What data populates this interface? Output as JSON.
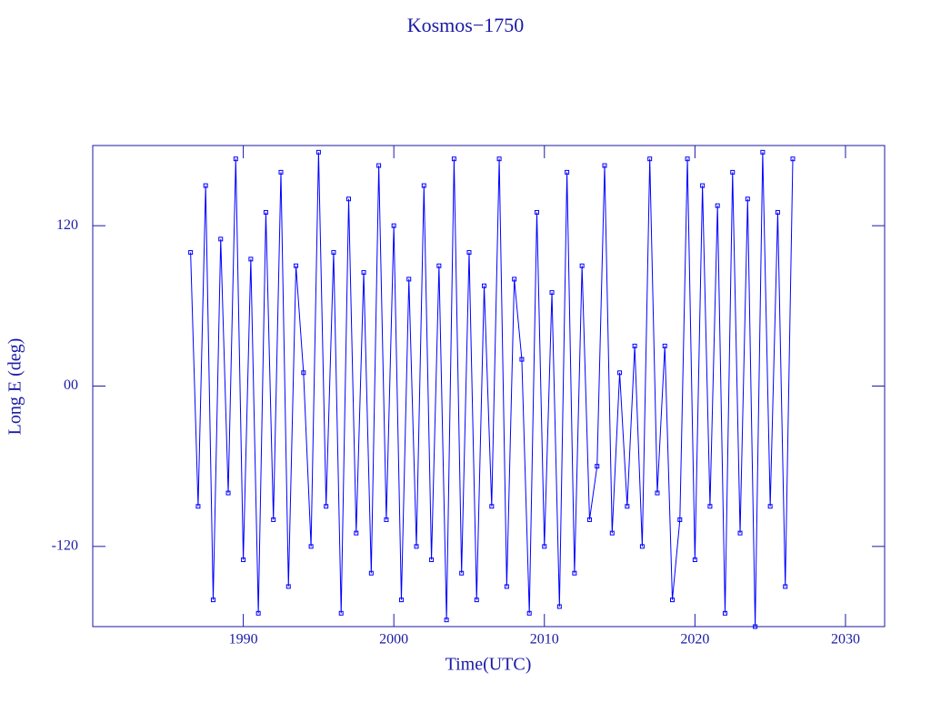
{
  "chart_data": {
    "type": "line",
    "title": "Kosmos−1750",
    "x_label": "Time(UTC)",
    "y_label": "Long E (deg)",
    "color": "#0000ff",
    "xlim": [
      1980,
      2032.6
    ],
    "ylim": [
      -180,
      180
    ],
    "xticks": [
      1990,
      2000,
      2010,
      2020,
      2030
    ],
    "yticks": [
      -120,
      {
        "value": 0,
        "label": "00"
      },
      120
    ],
    "x": [
      1986.5,
      1987,
      1987.5,
      1988,
      1988.5,
      1989,
      1989.5,
      1990,
      1990.5,
      1991,
      1991.5,
      1992,
      1992.5,
      1993,
      1993.5,
      1994,
      1994.5,
      1995,
      1995.5,
      1996,
      1996.5,
      1997,
      1997.5,
      1998,
      1998.5,
      1999,
      1999.5,
      2000,
      2000.5,
      2001,
      2001.5,
      2002,
      2002.5,
      2003,
      2003.5,
      2004,
      2004.5,
      2005,
      2005.5,
      2006,
      2006.5,
      2007,
      2007.5,
      2008,
      2008.5,
      2009,
      2009.5,
      2010,
      2010.5,
      2011,
      2011.5,
      2012,
      2012.5,
      2013,
      2013.5,
      2014,
      2014.5,
      2015,
      2015.5,
      2016,
      2016.5,
      2017,
      2017.5,
      2018,
      2018.5,
      2019,
      2019.5,
      2020,
      2020.5,
      2021,
      2021.5,
      2022,
      2022.5,
      2023,
      2023.5,
      2024,
      2024.5,
      2025,
      2025.5,
      2026,
      2026.5
    ],
    "values": [
      100,
      -90,
      150,
      -160,
      110,
      -80,
      170,
      -130,
      95,
      -170,
      130,
      -100,
      160,
      -150,
      90,
      10,
      -120,
      175,
      -90,
      100,
      -170,
      140,
      -110,
      85,
      -140,
      165,
      -100,
      120,
      -160,
      80,
      -120,
      150,
      -130,
      90,
      -175,
      170,
      -140,
      100,
      -160,
      75,
      -90,
      170,
      -150,
      80,
      20,
      -170,
      130,
      -120,
      70,
      -165,
      160,
      -140,
      90,
      -100,
      -60,
      165,
      -110,
      10,
      -90,
      30,
      -120,
      170,
      -80,
      30,
      -160,
      -100,
      170,
      -130,
      150,
      -90,
      135,
      -170,
      160,
      -110,
      140,
      -180,
      175,
      -90,
      130,
      -150,
      170
    ]
  }
}
